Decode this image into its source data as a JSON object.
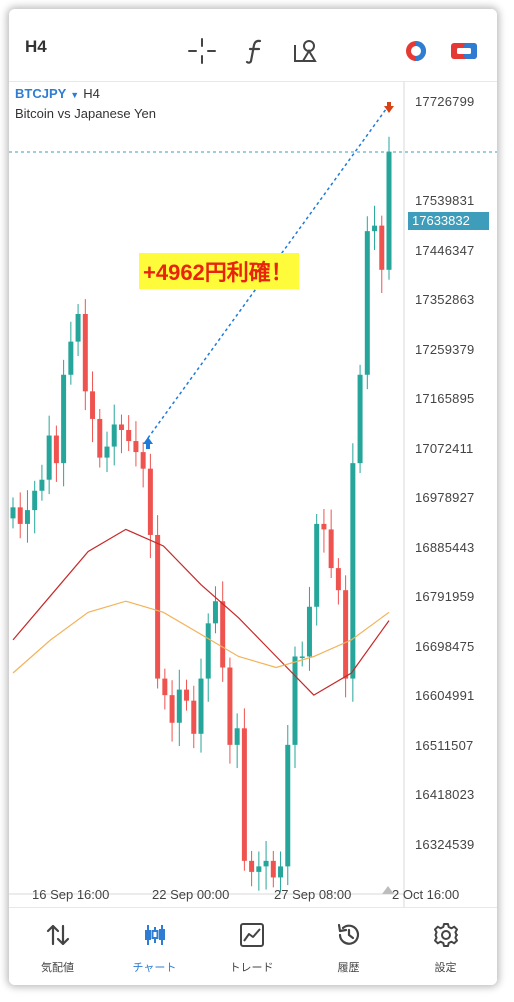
{
  "toolbar": {
    "timeframe": "H4",
    "icons": [
      "crosshair-icon",
      "function-icon",
      "objects-icon",
      "chart-color-icon",
      "trade-panel-icon"
    ]
  },
  "chart": {
    "symbol": "BTCJPY",
    "timeframe": "H4",
    "description": "Bitcoin vs Japanese Yen",
    "banner": "+4962円利確！",
    "current_price": "17633832",
    "price_labels": [
      "17726799",
      "17539831",
      "17446347",
      "17352863",
      "17259379",
      "17165895",
      "17072411",
      "16978927",
      "16885443",
      "16791959",
      "16698475",
      "16604991",
      "16511507",
      "16418023",
      "16324539"
    ],
    "date_labels": [
      "16 Sep 16:00",
      "22 Sep 00:00",
      "27 Sep 08:00",
      "2 Oct 16:00"
    ],
    "more_label": "•••",
    "colors": {
      "bull": "#26a69a",
      "bear": "#ef5350",
      "ma_fast": "#c62828",
      "ma_slow": "#f2b35a",
      "trade_line": "#1e7bd8",
      "banner_bg": "#fdfb3a",
      "banner_text": "#e8240f",
      "accent": "#2f7dd3"
    }
  },
  "nav": [
    {
      "label": "気配値",
      "icon": "quotes-icon"
    },
    {
      "label": "チャート",
      "icon": "chart-icon"
    },
    {
      "label": "トレード",
      "icon": "trade-icon"
    },
    {
      "label": "履歴",
      "icon": "history-icon"
    },
    {
      "label": "設定",
      "icon": "settings-icon"
    }
  ],
  "chart_data": {
    "type": "candlestick",
    "symbol": "BTCJPY",
    "timeframe": "H4",
    "y_axis_ticks": [
      17726799,
      17633832,
      17539831,
      17446347,
      17352863,
      17259379,
      17165895,
      17072411,
      16978927,
      16885443,
      16791959,
      16698475,
      16604991,
      16511507,
      16418023,
      16324539
    ],
    "ylim": [
      16290000,
      17760000
    ],
    "x_labels": [
      "16 Sep 16:00",
      "22 Sep 00:00",
      "27 Sep 08:00",
      "2 Oct 16:00"
    ],
    "closes": [
      16990000,
      16960000,
      16985000,
      17020000,
      17040000,
      17120000,
      17070000,
      17230000,
      17290000,
      17340000,
      17200000,
      17150000,
      17080000,
      17100000,
      17140000,
      17130000,
      17110000,
      17090000,
      17060000,
      16940000,
      16680000,
      16650000,
      16600000,
      16660000,
      16640000,
      16580000,
      16680000,
      16780000,
      16820000,
      16700000,
      16560000,
      16590000,
      16350000,
      16330000,
      16340000,
      16350000,
      16320000,
      16340000,
      16560000,
      16720000,
      16720000,
      16810000,
      16960000,
      16950000,
      16880000,
      16840000,
      16680000,
      17070000,
      17230000,
      17490000,
      17500000,
      17420000,
      17633832
    ],
    "moving_averages": [
      {
        "color": "#c62828",
        "values": [
          16750000,
          16830000,
          16910000,
          16950000,
          16920000,
          16850000,
          16790000,
          16720000,
          16650000,
          16690000,
          16785000
        ]
      },
      {
        "color": "#f2b35a",
        "values": [
          16690000,
          16750000,
          16800000,
          16820000,
          16800000,
          16760000,
          16720000,
          16700000,
          16720000,
          16750000,
          16800000
        ]
      }
    ],
    "trade": {
      "entry": 17080000,
      "exit": 17700000
    }
  }
}
